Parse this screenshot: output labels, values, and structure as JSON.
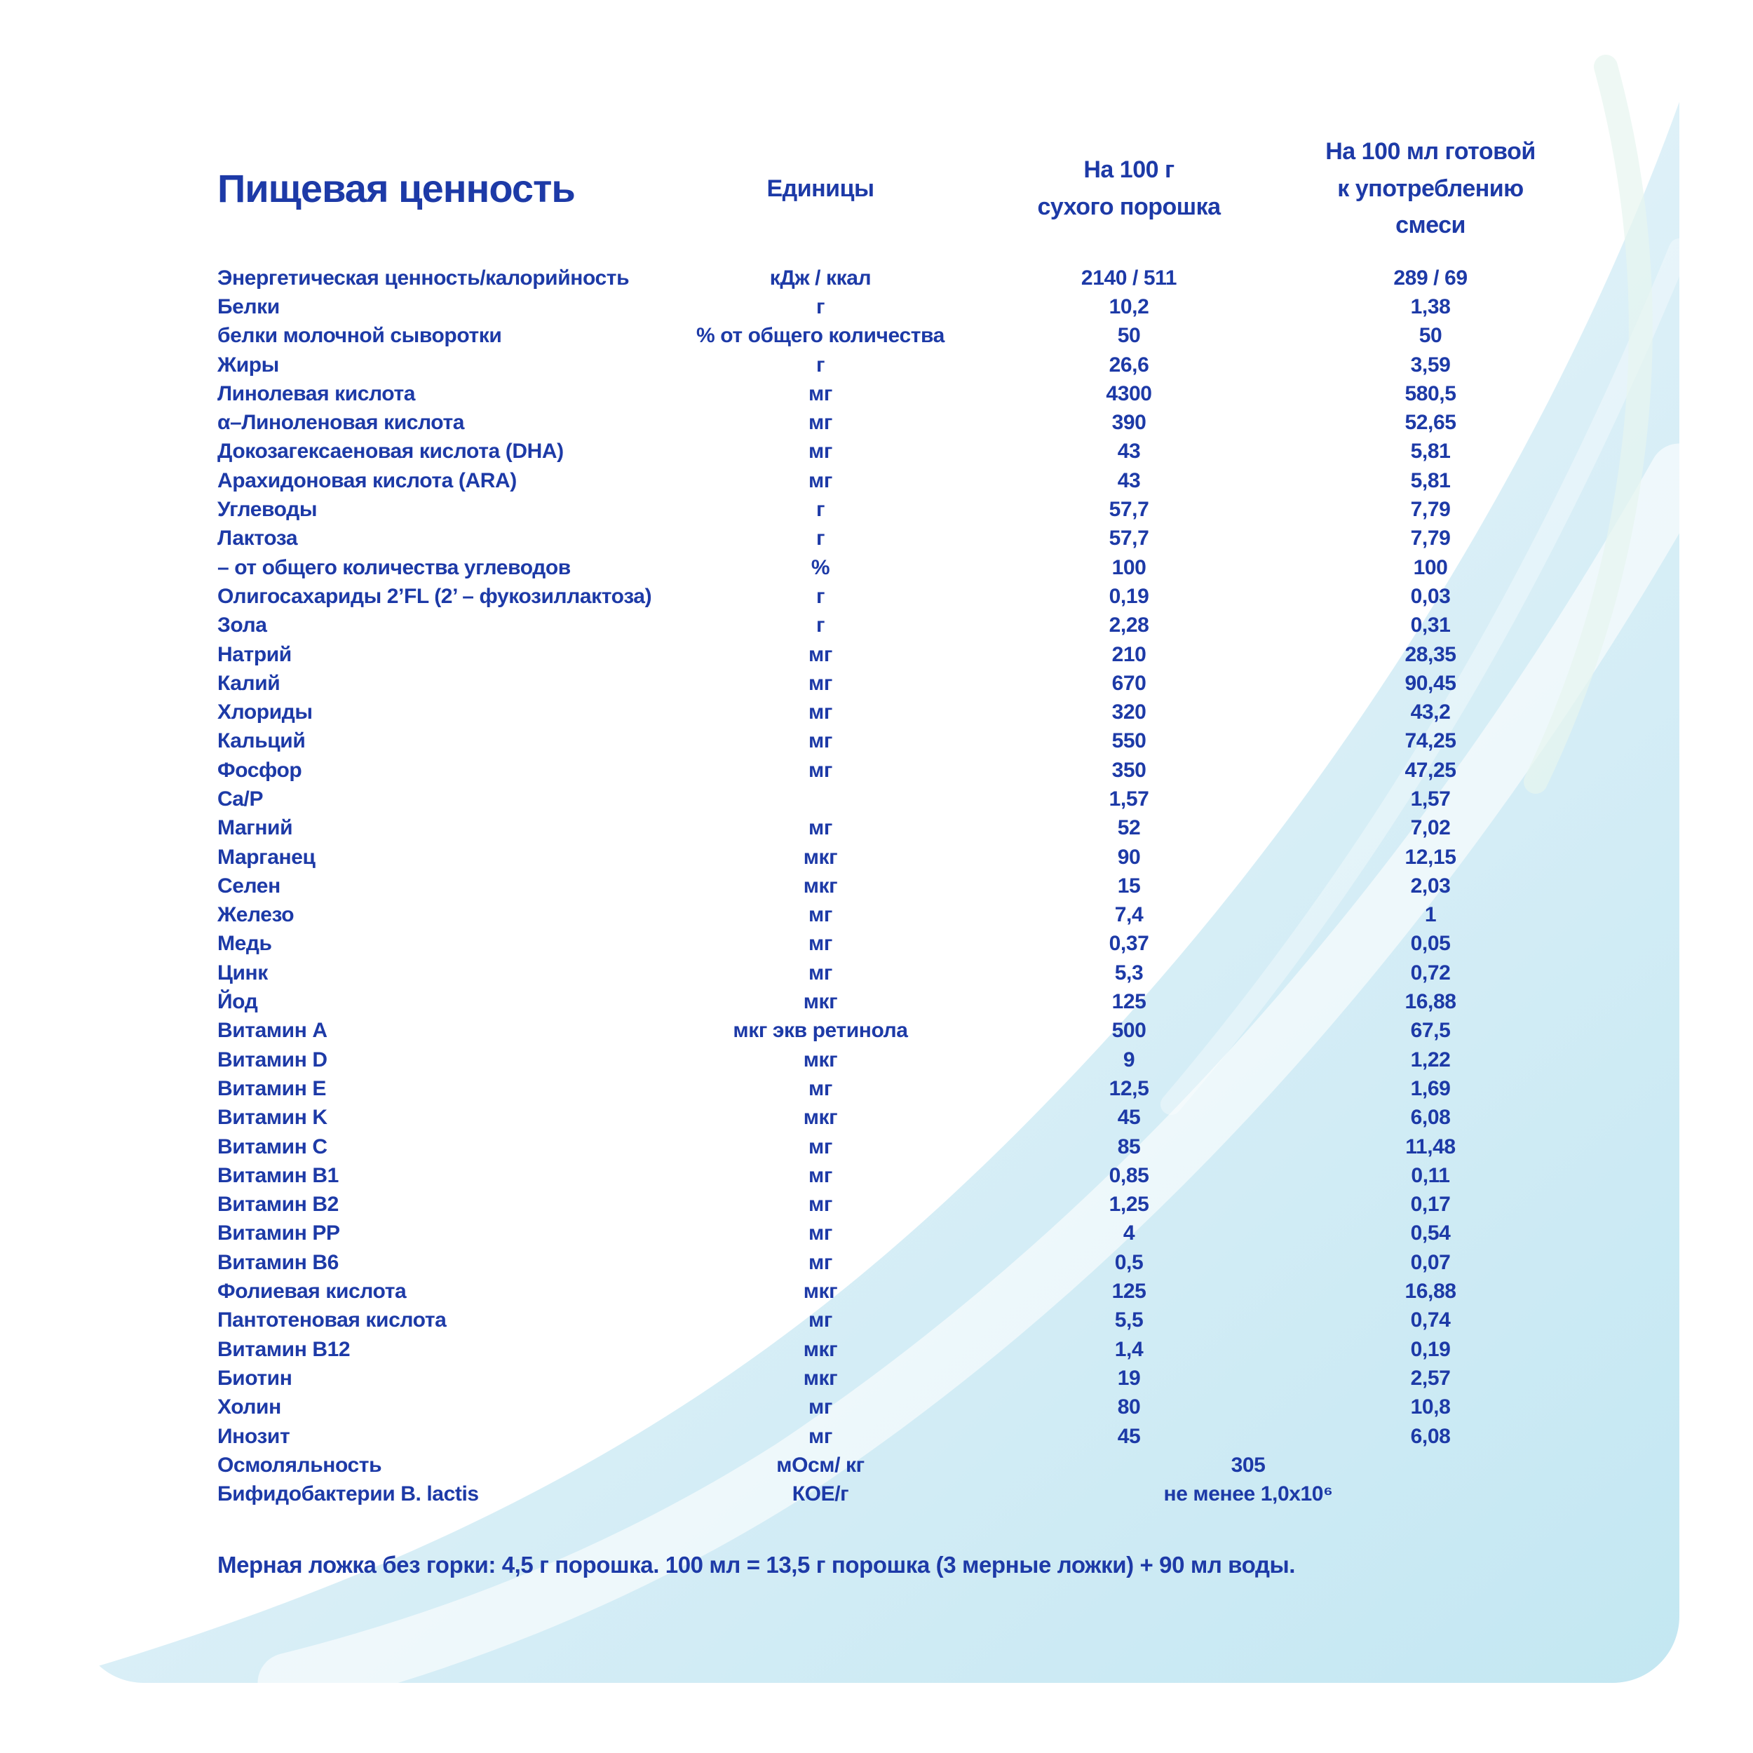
{
  "accent_color": "#1d3aa7",
  "background": {
    "swoosh_light": "#f2fafc",
    "swoosh_mid": "#d9eef6",
    "swoosh_deep": "#c3e7f2"
  },
  "table": {
    "title": "Пищевая ценность",
    "col_units": "Единицы",
    "col_per100g_line1": "На 100 г",
    "col_per100g_line2": "сухого порошка",
    "col_per100ml_line1": "На 100 мл готовой",
    "col_per100ml_line2": "к употреблению смеси",
    "rows": [
      {
        "label": "Энергетическая ценность/калорийность",
        "units": "кДж / ккал",
        "per100g": "2140 / 511",
        "per100ml": "289 / 69"
      },
      {
        "label": "Белки",
        "units": "г",
        "per100g": "10,2",
        "per100ml": "1,38"
      },
      {
        "label": "белки молочной сыворотки",
        "units": "% от общего количества",
        "per100g": "50",
        "per100ml": "50"
      },
      {
        "label": "Жиры",
        "units": "г",
        "per100g": "26,6",
        "per100ml": "3,59"
      },
      {
        "label": "Линолевая кислота",
        "units": "мг",
        "per100g": "4300",
        "per100ml": "580,5"
      },
      {
        "label": "α–Линоленовая кислота",
        "units": "мг",
        "per100g": "390",
        "per100ml": "52,65"
      },
      {
        "label": "Докозагексаеновая кислота (DHA)",
        "units": "мг",
        "per100g": "43",
        "per100ml": "5,81"
      },
      {
        "label": "Арахидоновая кислота (ARA)",
        "units": "мг",
        "per100g": "43",
        "per100ml": "5,81"
      },
      {
        "label": "Углеводы",
        "units": "г",
        "per100g": "57,7",
        "per100ml": "7,79"
      },
      {
        "label": "Лактоза",
        "units": "г",
        "per100g": "57,7",
        "per100ml": "7,79"
      },
      {
        "label": "– от общего количества углеводов",
        "units": "%",
        "per100g": "100",
        "per100ml": "100"
      },
      {
        "label": "Олигосахариды 2’FL (2’ – фукозиллактоза)",
        "units": "г",
        "per100g": "0,19",
        "per100ml": "0,03"
      },
      {
        "label": "Зола",
        "units": "г",
        "per100g": "2,28",
        "per100ml": "0,31"
      },
      {
        "label": "Натрий",
        "units": "мг",
        "per100g": "210",
        "per100ml": "28,35"
      },
      {
        "label": "Калий",
        "units": "мг",
        "per100g": "670",
        "per100ml": "90,45"
      },
      {
        "label": "Хлориды",
        "units": "мг",
        "per100g": "320",
        "per100ml": "43,2"
      },
      {
        "label": "Кальций",
        "units": "мг",
        "per100g": "550",
        "per100ml": "74,25"
      },
      {
        "label": "Фосфор",
        "units": "мг",
        "per100g": "350",
        "per100ml": "47,25"
      },
      {
        "label": "Ca/P",
        "units": "",
        "per100g": "1,57",
        "per100ml": "1,57"
      },
      {
        "label": "Магний",
        "units": "мг",
        "per100g": "52",
        "per100ml": "7,02"
      },
      {
        "label": "Марганец",
        "units": "мкг",
        "per100g": "90",
        "per100ml": "12,15"
      },
      {
        "label": "Селен",
        "units": "мкг",
        "per100g": "15",
        "per100ml": "2,03"
      },
      {
        "label": "Железо",
        "units": "мг",
        "per100g": "7,4",
        "per100ml": "1"
      },
      {
        "label": "Медь",
        "units": "мг",
        "per100g": "0,37",
        "per100ml": "0,05"
      },
      {
        "label": "Цинк",
        "units": "мг",
        "per100g": "5,3",
        "per100ml": "0,72"
      },
      {
        "label": "Йод",
        "units": "мкг",
        "per100g": "125",
        "per100ml": "16,88"
      },
      {
        "label": "Витамин A",
        "units": "мкг экв ретинола",
        "per100g": "500",
        "per100ml": "67,5"
      },
      {
        "label": "Витамин D",
        "units": "мкг",
        "per100g": "9",
        "per100ml": "1,22"
      },
      {
        "label": "Витамин E",
        "units": "мг",
        "per100g": "12,5",
        "per100ml": "1,69"
      },
      {
        "label": "Витамин K",
        "units": "мкг",
        "per100g": "45",
        "per100ml": "6,08"
      },
      {
        "label": "Витамин C",
        "units": "мг",
        "per100g": "85",
        "per100ml": "11,48"
      },
      {
        "label": "Витамин B1",
        "units": "мг",
        "per100g": "0,85",
        "per100ml": "0,11"
      },
      {
        "label": "Витамин B2",
        "units": "мг",
        "per100g": "1,25",
        "per100ml": "0,17"
      },
      {
        "label": "Витамин PP",
        "units": "мг",
        "per100g": "4",
        "per100ml": "0,54"
      },
      {
        "label": "Витамин B6",
        "units": "мг",
        "per100g": "0,5",
        "per100ml": "0,07"
      },
      {
        "label": "Фолиевая кислота",
        "units": "мкг",
        "per100g": "125",
        "per100ml": "16,88"
      },
      {
        "label": "Пантотеновая кислота",
        "units": "мг",
        "per100g": "5,5",
        "per100ml": "0,74"
      },
      {
        "label": "Витамин B12",
        "units": "мкг",
        "per100g": "1,4",
        "per100ml": "0,19"
      },
      {
        "label": "Биотин",
        "units": "мкг",
        "per100g": "19",
        "per100ml": "2,57"
      },
      {
        "label": "Холин",
        "units": "мг",
        "per100g": "80",
        "per100ml": "10,8"
      },
      {
        "label": "Инозит",
        "units": "мг",
        "per100g": "45",
        "per100ml": "6,08"
      },
      {
        "label": "Осмоляльность",
        "units": "мОсм/ кг",
        "span_value": "305"
      },
      {
        "label": "Бифидобактерии B. lactis",
        "units": "КОЕ/г",
        "span_value": "не менее 1,0x10⁶"
      }
    ]
  },
  "footnote": "Мерная ложка без горки: 4,5 г порошка. 100 мл = 13,5 г порошка (3 мерные ложки) + 90 мл воды."
}
